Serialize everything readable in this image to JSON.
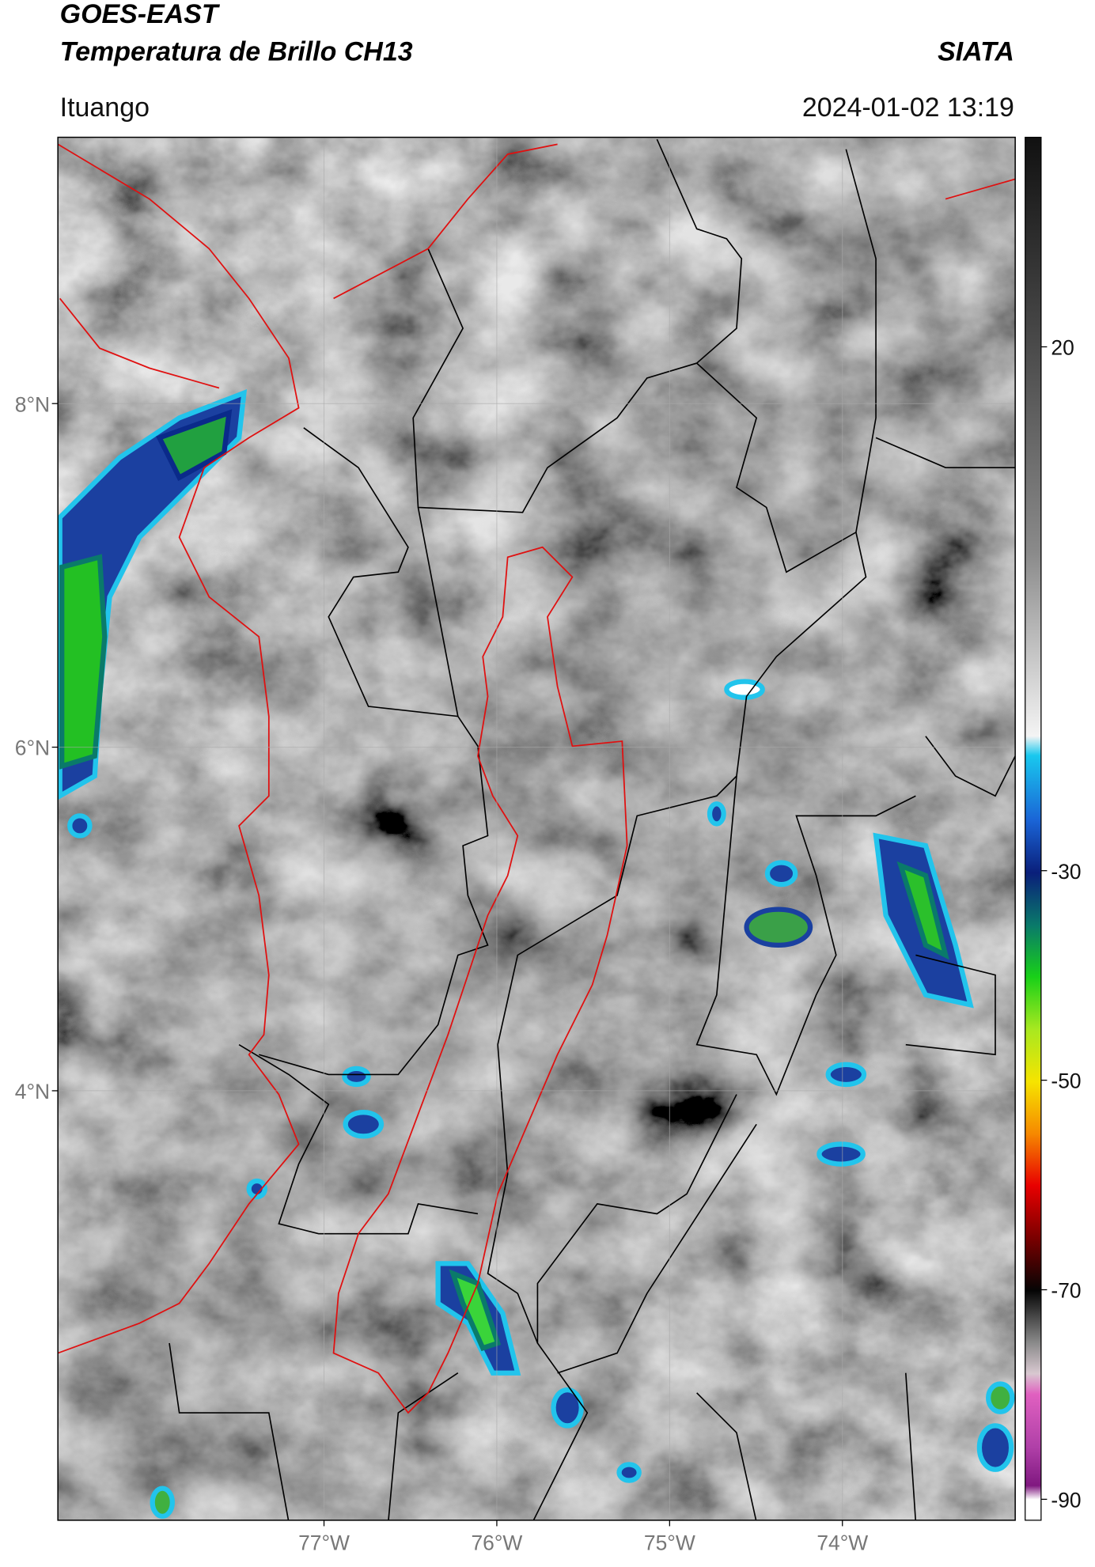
{
  "header": {
    "title": "GOES-EAST",
    "subtitle": "Temperatura de Brillo CH13",
    "agency": "SIATA",
    "location": "Ituango",
    "datetime": "2024-01-02 13:19"
  },
  "map": {
    "xlim": [
      -78.54,
      -73.0
    ],
    "ylim": [
      1.5,
      9.55
    ],
    "xticks": [
      {
        "value": -77,
        "label": "77°W"
      },
      {
        "value": -76,
        "label": "76°W"
      },
      {
        "value": -75,
        "label": "75°W"
      },
      {
        "value": -74,
        "label": "74°W"
      }
    ],
    "yticks": [
      {
        "value": 4,
        "label": "4°N"
      },
      {
        "value": 6,
        "label": "6°N"
      },
      {
        "value": 8,
        "label": "8°N"
      }
    ],
    "grid": true
  },
  "colorbar": {
    "lim": [
      40,
      -92
    ],
    "ticks": [
      20,
      -30,
      -50,
      -70,
      -90
    ]
  }
}
